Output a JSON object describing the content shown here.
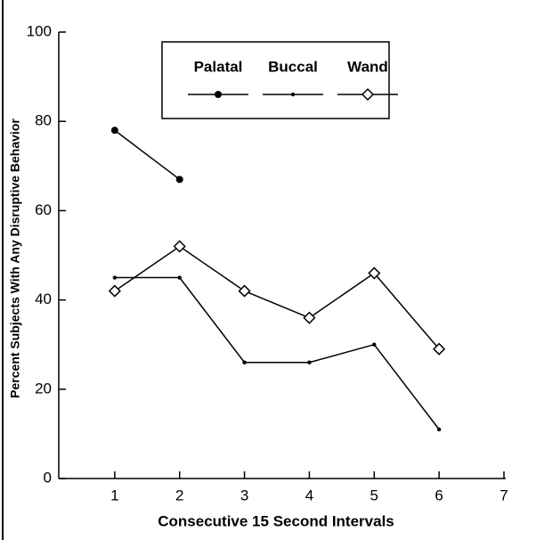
{
  "chart_data": {
    "type": "line",
    "x_label": "Consecutive 15 Second Intervals",
    "y_label": "Percent Subjects With Any Disruptive Behavior",
    "x": [
      1,
      2,
      3,
      4,
      5,
      6
    ],
    "series": [
      {
        "name": "Palatal",
        "color": "#000000",
        "marker": "filled-circle",
        "values": [
          78,
          67,
          null,
          null,
          null,
          null
        ]
      },
      {
        "name": "Buccal",
        "color": "#000000",
        "marker": "dot",
        "values": [
          45,
          45,
          26,
          26,
          30,
          11
        ]
      },
      {
        "name": "Wand",
        "color": "#000000",
        "marker": "open-diamond",
        "values": [
          42,
          52,
          42,
          36,
          46,
          29
        ]
      }
    ],
    "xlim": [
      0,
      7
    ],
    "xticks": [
      1,
      2,
      3,
      4,
      5,
      6,
      7
    ],
    "ylim": [
      0,
      100
    ],
    "yticks": [
      0,
      20,
      40,
      60,
      80,
      100
    ],
    "grid": false
  }
}
